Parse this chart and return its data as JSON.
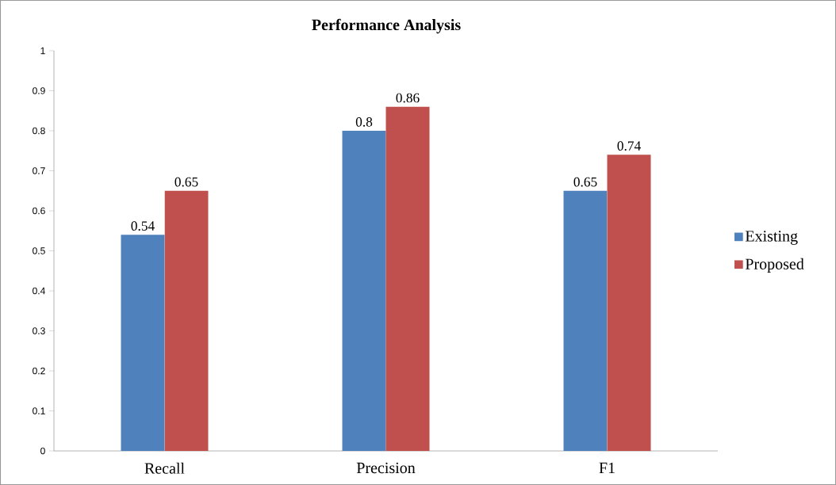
{
  "chart_data": {
    "type": "bar",
    "title": "Performance Analysis",
    "categories": [
      "Recall",
      "Precision",
      "F1"
    ],
    "series": [
      {
        "name": "Existing",
        "color": "#4f81bd",
        "values": [
          0.54,
          0.8,
          0.65
        ]
      },
      {
        "name": "Proposed",
        "color": "#c0504d",
        "values": [
          0.65,
          0.86,
          0.74
        ]
      }
    ],
    "ylim": [
      0,
      1
    ],
    "yticks": [
      0,
      0.1,
      0.2,
      0.3,
      0.4,
      0.5,
      0.6,
      0.7,
      0.8,
      0.9,
      1
    ],
    "data_labels": true,
    "grid": false,
    "legend": "right"
  }
}
